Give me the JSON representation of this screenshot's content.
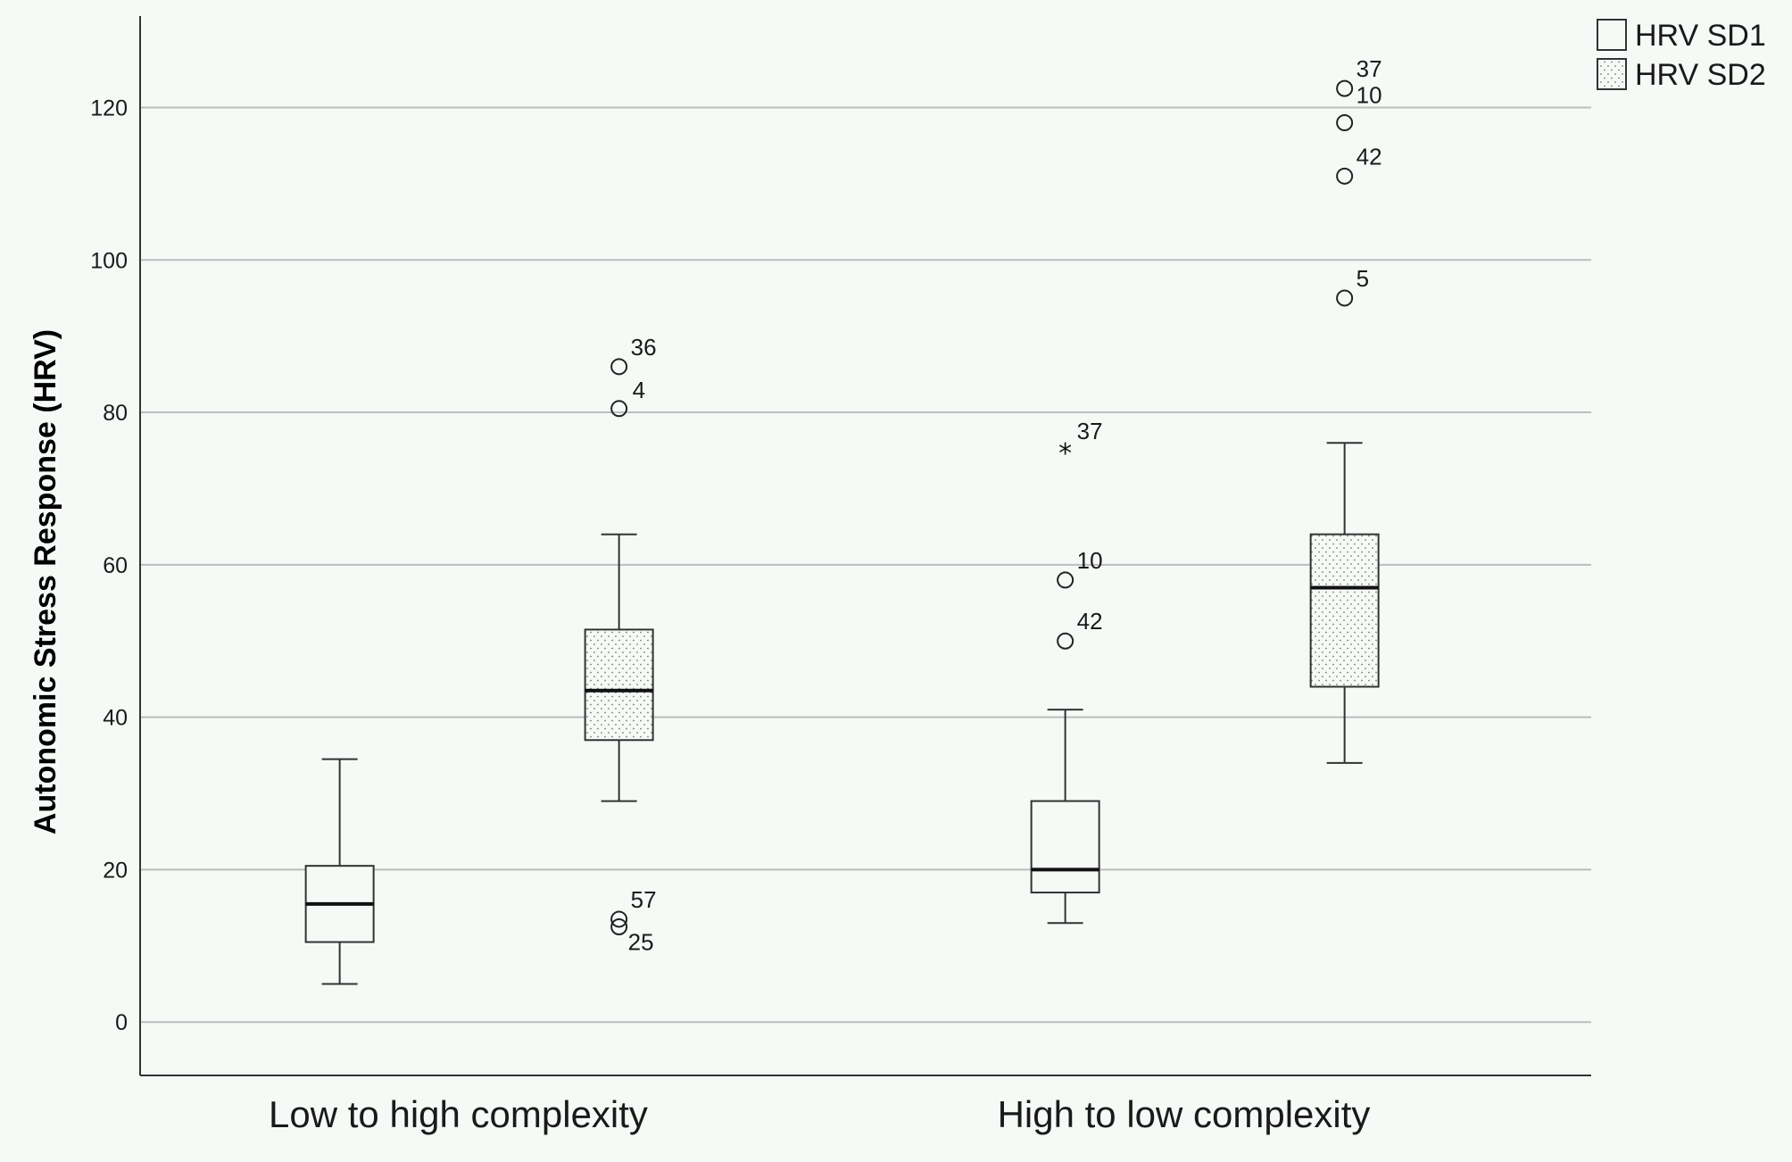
{
  "chart_data": {
    "type": "boxplot",
    "ylabel": "Autonomic Stress Response (HRV)",
    "xlabel": "",
    "ylim": [
      -7,
      132
    ],
    "yticks": [
      0,
      20,
      40,
      60,
      80,
      100,
      120
    ],
    "grid": "horizontal",
    "legend_position": "top-right",
    "categories": [
      "Low to high complexity",
      "High to low complexity"
    ],
    "series": [
      {
        "name": "HRV SD1",
        "pattern": "plain",
        "boxes": [
          {
            "whisker_low": 5,
            "q1": 10.5,
            "median": 15.5,
            "q3": 20.5,
            "whisker_high": 34.5,
            "outliers": []
          },
          {
            "whisker_low": 13,
            "q1": 17,
            "median": 20,
            "q3": 29,
            "whisker_high": 41,
            "outliers": [
              {
                "value": 75,
                "label": "37",
                "marker": "star"
              },
              {
                "value": 58,
                "label": "10",
                "marker": "circle"
              },
              {
                "value": 50,
                "label": "42",
                "marker": "circle"
              }
            ]
          }
        ]
      },
      {
        "name": "HRV SD2",
        "pattern": "dotted",
        "boxes": [
          {
            "whisker_low": 29,
            "q1": 37,
            "median": 43.5,
            "q3": 51.5,
            "whisker_high": 64,
            "outliers": [
              {
                "value": 86,
                "label": "36",
                "marker": "circle"
              },
              {
                "value": 80.5,
                "label": "4",
                "marker": "circle"
              },
              {
                "value": 13.5,
                "label": "57",
                "marker": "circle"
              },
              {
                "value": 12.5,
                "label": "25",
                "marker": "circle"
              }
            ]
          },
          {
            "whisker_low": 34,
            "q1": 44,
            "median": 57,
            "q3": 64,
            "whisker_high": 76,
            "outliers": [
              {
                "value": 122.5,
                "label": "37",
                "marker": "circle"
              },
              {
                "value": 118,
                "label": "10",
                "marker": "circle"
              },
              {
                "value": 111,
                "label": "42",
                "marker": "circle"
              },
              {
                "value": 95,
                "label": "5",
                "marker": "circle"
              }
            ]
          }
        ]
      }
    ]
  },
  "colors": {
    "background": "#f6faf6",
    "axis": "#333333",
    "grid": "#bdbdbd",
    "box_stroke": "#333333",
    "median": "#111111"
  }
}
